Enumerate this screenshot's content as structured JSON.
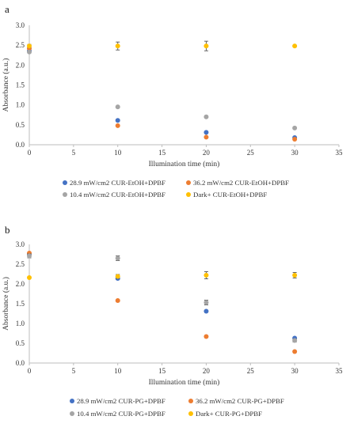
{
  "chart_data": [
    {
      "type": "scatter",
      "panel_label": "a",
      "xlabel": "Illumination time (min)",
      "ylabel": "Absorbance (a.u.)",
      "xlim": [
        0,
        35
      ],
      "ylim": [
        0,
        3.0
      ],
      "xticks": [
        "0",
        "5",
        "10",
        "15",
        "20",
        "25",
        "30",
        "35"
      ],
      "yticks": [
        "0.0",
        "0.5",
        "1.0",
        "1.5",
        "2.0",
        "2.5",
        "3.0"
      ],
      "grid": false,
      "legend_position": "bottom",
      "series": [
        {
          "name": "28.9 mW/cm2 CUR-EtOH+DPBF",
          "color": "#4472C4",
          "x": [
            0,
            10,
            20,
            30
          ],
          "y": [
            2.36,
            0.61,
            0.31,
            0.18
          ],
          "err": [
            0,
            0,
            0,
            0
          ]
        },
        {
          "name": "36.2 mW/cm2 CUR-EtOH+DPBF",
          "color": "#ED7D31",
          "x": [
            0,
            10,
            20,
            30
          ],
          "y": [
            2.42,
            0.48,
            0.19,
            0.14
          ],
          "err": [
            0,
            0,
            0,
            0
          ]
        },
        {
          "name": "10.4 mW/cm2 CUR-EtOH+DPBF",
          "color": "#A5A5A5",
          "x": [
            0,
            10,
            20,
            30
          ],
          "y": [
            2.33,
            0.95,
            0.7,
            0.42
          ],
          "err": [
            0,
            0,
            0,
            0
          ]
        },
        {
          "name": "Dark+ CUR-EtOH+DPBF",
          "color": "#FFC000",
          "x": [
            0,
            10,
            20,
            30
          ],
          "y": [
            2.48,
            2.48,
            2.48,
            2.48
          ],
          "err": [
            0.04,
            0.1,
            0.12,
            0
          ]
        }
      ]
    },
    {
      "type": "scatter",
      "panel_label": "b",
      "xlabel": "Illumination time (min)",
      "ylabel": "Absorbance (a.u.)",
      "xlim": [
        0,
        35
      ],
      "ylim": [
        0,
        3.0
      ],
      "xticks": [
        "0",
        "5",
        "10",
        "15",
        "20",
        "25",
        "30",
        "35"
      ],
      "yticks": [
        "0.0",
        "0.5",
        "1.0",
        "1.5",
        "2.0",
        "2.5",
        "3.0"
      ],
      "grid": false,
      "legend_position": "bottom",
      "series": [
        {
          "name": "28.9 mW/cm2 CUR-PG+DPBF",
          "color": "#4472C4",
          "x": [
            0,
            10,
            20,
            30
          ],
          "y": [
            2.75,
            2.14,
            1.31,
            0.63
          ],
          "err": [
            0,
            0.03,
            0,
            0
          ]
        },
        {
          "name": "36.2 mW/cm2 CUR-PG+DPBF",
          "color": "#ED7D31",
          "x": [
            0,
            10,
            20,
            30
          ],
          "y": [
            2.78,
            1.58,
            0.67,
            0.29
          ],
          "err": [
            0,
            0,
            0,
            0
          ]
        },
        {
          "name": "10.4 mW/cm2 CUR-PG+DPBF",
          "color": "#A5A5A5",
          "x": [
            0,
            10,
            20,
            30
          ],
          "y": [
            2.71,
            2.65,
            1.53,
            0.57
          ],
          "err": [
            0.05,
            0.06,
            0.06,
            0.04
          ]
        },
        {
          "name": "Dark+ CUR-PG+DPBF",
          "color": "#FFC000",
          "x": [
            0,
            10,
            20,
            30
          ],
          "y": [
            2.16,
            2.19,
            2.22,
            2.22
          ],
          "err": [
            0,
            0.05,
            0.09,
            0.07
          ]
        }
      ]
    }
  ]
}
